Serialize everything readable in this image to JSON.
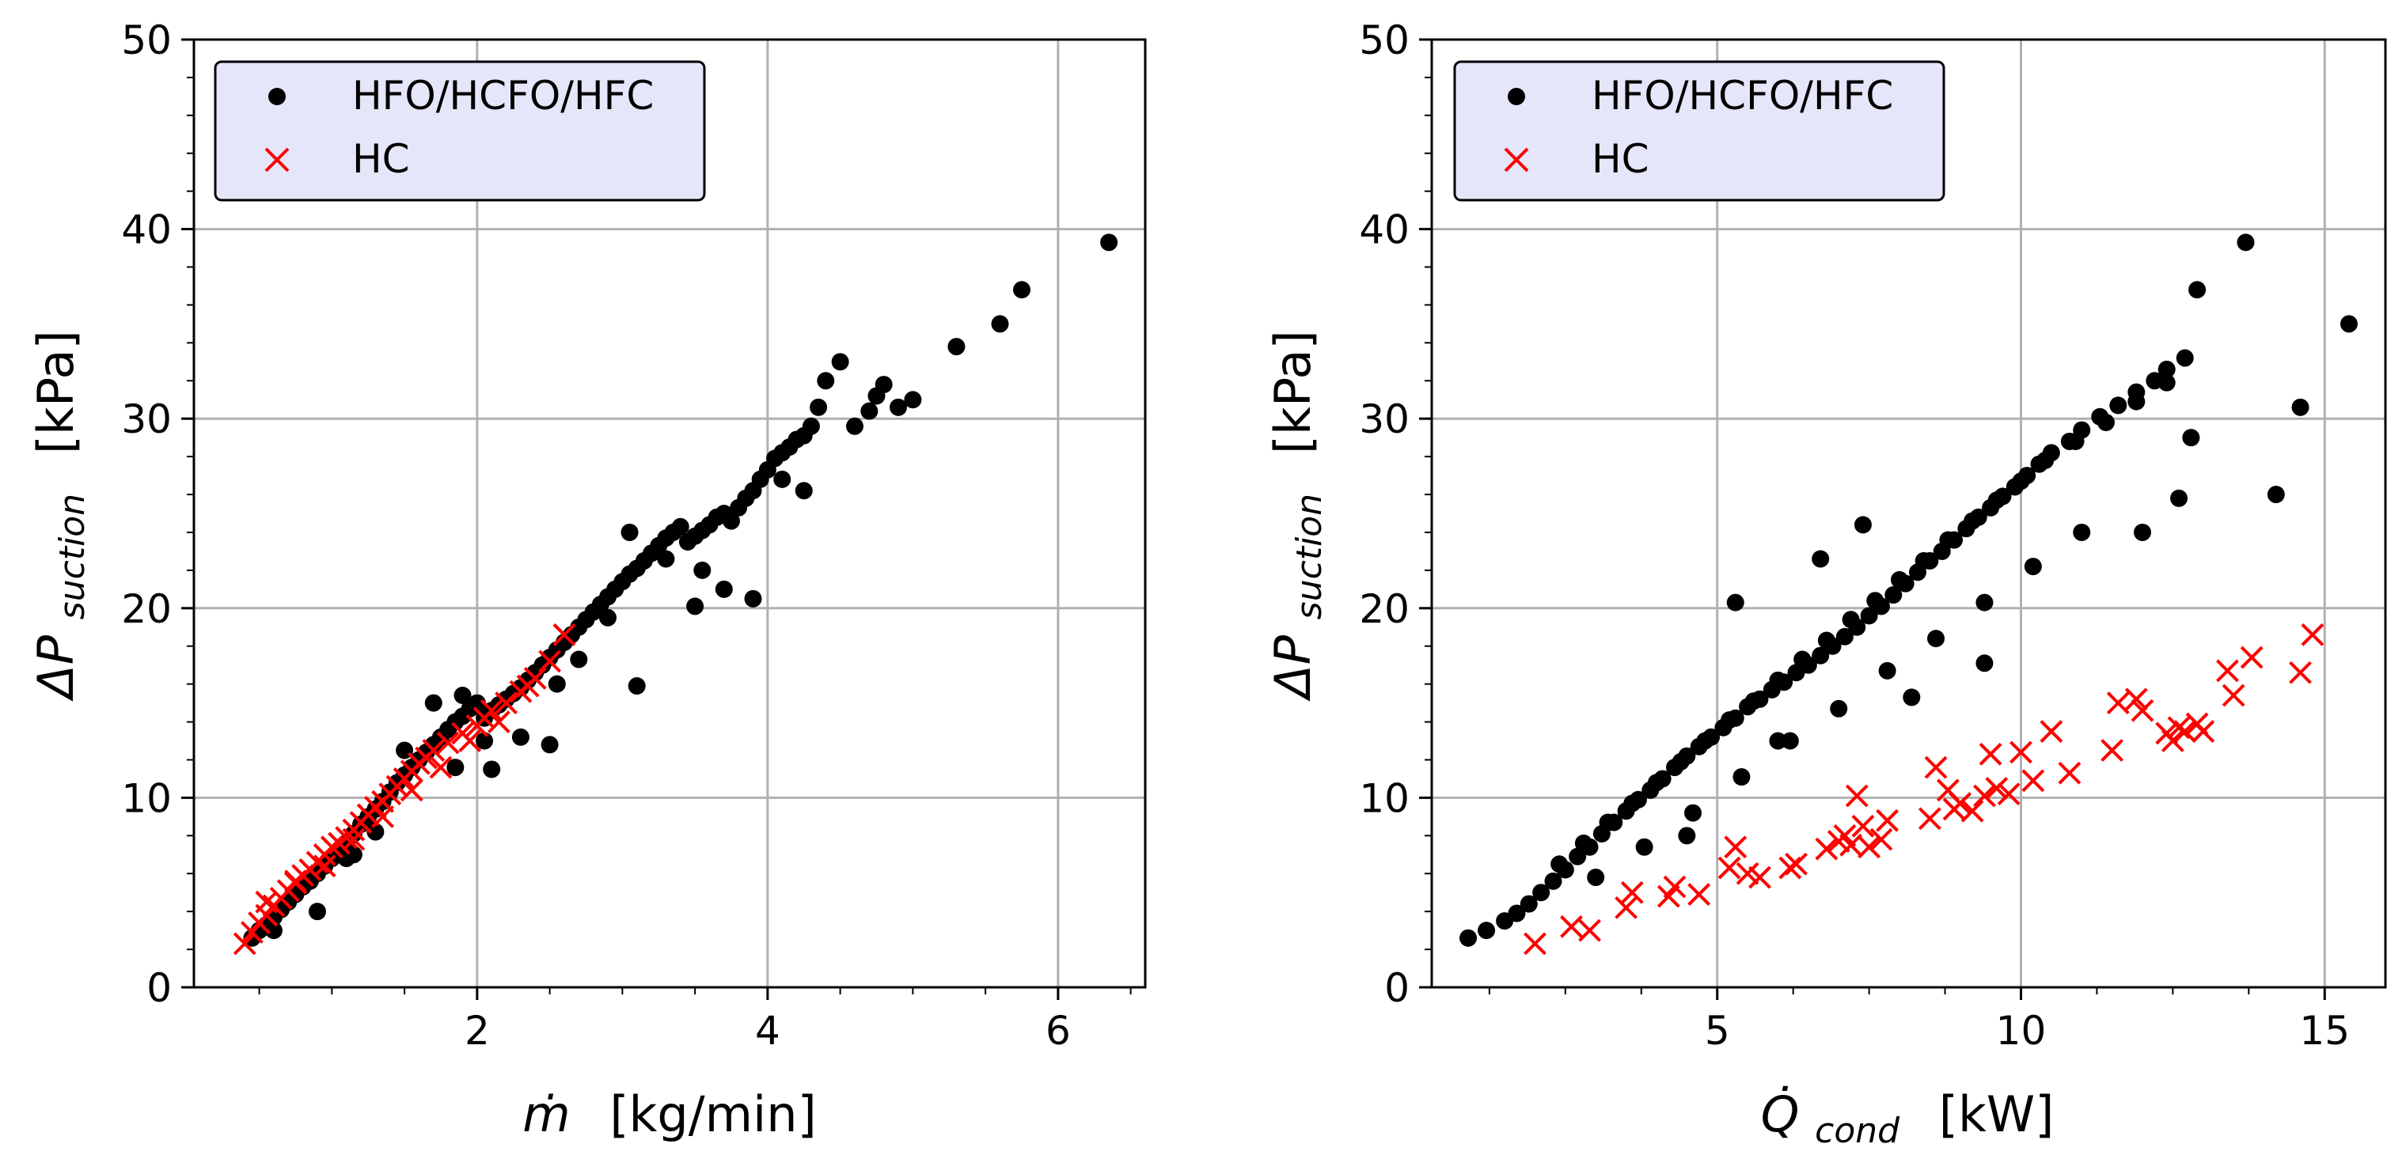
{
  "legend": {
    "series1": "HFO/HCFO/HFC",
    "series2": "HC"
  },
  "colors": {
    "series1": "#000000",
    "series2": "#ff0000",
    "legend_bg": "#e6e6fa",
    "grid": "#b0b0b0"
  },
  "chart_data": [
    {
      "type": "scatter",
      "xlabel_main": "ṁ",
      "xlabel_unit": "[kg/min]",
      "ylabel_main": "ΔP",
      "ylabel_sub": "suction",
      "ylabel_unit": "[kPa]",
      "xlim": [
        0.05,
        6.6
      ],
      "ylim": [
        0,
        50
      ],
      "xticks": [
        2,
        4,
        6
      ],
      "yticks": [
        0,
        10,
        20,
        30,
        40,
        50
      ],
      "grid": true,
      "legend_position": "top-left",
      "series": [
        {
          "name": "HFO/HCFO/HFC",
          "marker": "circle",
          "x": [
            0.45,
            0.5,
            0.55,
            0.6,
            0.65,
            0.7,
            0.75,
            0.8,
            0.85,
            0.9,
            0.95,
            1.0,
            1.05,
            1.1,
            1.15,
            1.2,
            1.25,
            1.3,
            1.35,
            1.4,
            1.45,
            1.5,
            1.55,
            1.6,
            1.65,
            1.7,
            1.75,
            1.8,
            1.85,
            1.9,
            1.95,
            2.0,
            2.05,
            2.1,
            2.15,
            2.2,
            2.25,
            2.3,
            2.35,
            2.4,
            2.45,
            2.5,
            2.55,
            2.6,
            2.65,
            2.7,
            2.75,
            2.8,
            2.85,
            2.9,
            2.95,
            3.0,
            3.05,
            3.1,
            3.15,
            3.2,
            3.25,
            3.3,
            3.35,
            3.4,
            3.45,
            3.5,
            3.55,
            3.6,
            3.65,
            3.7,
            3.75,
            3.8,
            3.85,
            3.9,
            3.95,
            4.0,
            4.05,
            4.1,
            4.15,
            4.2,
            4.25,
            4.3,
            4.35,
            4.4,
            4.5,
            4.6,
            4.7,
            4.75,
            4.8,
            4.9,
            5.0,
            5.3,
            5.6,
            5.75,
            6.35,
            0.6,
            0.9,
            1.1,
            1.3,
            1.5,
            1.7,
            1.9,
            2.1,
            2.3,
            2.5,
            2.7,
            2.9,
            3.1,
            3.3,
            3.5,
            3.7,
            3.9,
            4.1,
            1.15,
            1.85,
            2.05,
            2.55,
            3.05,
            3.55,
            4.25
          ],
          "y": [
            2.6,
            3.0,
            3.3,
            3.7,
            4.1,
            4.5,
            4.9,
            5.3,
            5.6,
            6.0,
            6.4,
            6.8,
            7.2,
            7.6,
            8.1,
            8.6,
            9.0,
            9.4,
            9.8,
            10.3,
            10.8,
            11.2,
            11.6,
            12.0,
            12.4,
            12.8,
            13.2,
            13.6,
            14.0,
            14.3,
            14.7,
            15.0,
            14.2,
            14.6,
            14.9,
            15.2,
            15.5,
            15.8,
            16.2,
            16.6,
            17.0,
            17.4,
            17.8,
            18.2,
            18.6,
            19.0,
            19.4,
            19.8,
            20.2,
            20.6,
            21.0,
            21.4,
            21.8,
            22.1,
            22.5,
            22.9,
            23.3,
            23.7,
            24.0,
            24.3,
            23.5,
            23.8,
            24.1,
            24.4,
            24.8,
            25.0,
            24.6,
            25.3,
            25.8,
            26.2,
            26.8,
            27.3,
            27.9,
            28.2,
            28.5,
            28.9,
            29.1,
            29.6,
            30.6,
            32.0,
            33.0,
            29.6,
            30.4,
            31.2,
            31.8,
            30.6,
            31.0,
            33.8,
            35.0,
            36.8,
            39.3,
            3.0,
            4.0,
            6.8,
            8.2,
            12.5,
            15.0,
            15.4,
            11.5,
            13.2,
            12.8,
            17.3,
            19.5,
            15.9,
            22.6,
            20.1,
            21.0,
            20.5,
            26.8,
            7.0,
            11.6,
            13.0,
            16.0,
            24.0,
            22.0,
            26.2
          ]
        },
        {
          "name": "HC",
          "marker": "x",
          "x": [
            0.4,
            0.45,
            0.5,
            0.55,
            0.6,
            0.65,
            0.7,
            0.75,
            0.8,
            0.85,
            0.9,
            0.95,
            1.0,
            1.05,
            1.1,
            1.15,
            1.2,
            1.25,
            1.3,
            1.35,
            1.4,
            1.45,
            1.5,
            1.55,
            1.6,
            1.65,
            1.7,
            1.8,
            1.9,
            2.0,
            2.05,
            2.1,
            2.2,
            2.3,
            2.4,
            2.5,
            2.6,
            0.55,
            0.75,
            0.95,
            1.15,
            1.35,
            1.55,
            1.75,
            1.95,
            2.15,
            2.35
          ],
          "y": [
            2.3,
            2.9,
            3.4,
            3.8,
            4.3,
            4.7,
            5.1,
            5.5,
            5.9,
            6.2,
            6.6,
            7.0,
            7.4,
            7.6,
            7.9,
            8.3,
            8.7,
            9.1,
            9.5,
            9.8,
            10.2,
            10.6,
            11.0,
            11.4,
            11.8,
            12.1,
            12.5,
            12.9,
            13.4,
            13.8,
            14.2,
            14.6,
            15.0,
            15.6,
            16.3,
            17.2,
            18.6,
            4.5,
            5.6,
            6.4,
            7.8,
            9.0,
            10.4,
            11.6,
            13.0,
            14.0,
            15.9
          ]
        }
      ]
    },
    {
      "type": "scatter",
      "xlabel_main": "Q̇",
      "xlabel_sub": "cond",
      "xlabel_unit": "[kW]",
      "ylabel_main": "ΔP",
      "ylabel_sub": "suction",
      "ylabel_unit": "[kPa]",
      "xlim": [
        0.3,
        16.0
      ],
      "ylim": [
        0,
        50
      ],
      "xticks": [
        5,
        10,
        15
      ],
      "yticks": [
        0,
        10,
        20,
        30,
        40,
        50
      ],
      "grid": true,
      "legend_position": "top-left",
      "series": [
        {
          "name": "HFO/HCFO/HFC",
          "marker": "circle",
          "x": [
            0.9,
            1.2,
            1.5,
            1.7,
            1.9,
            2.1,
            2.3,
            2.5,
            2.7,
            2.9,
            3.1,
            3.3,
            3.5,
            3.7,
            3.9,
            4.1,
            4.3,
            4.5,
            4.7,
            4.9,
            5.1,
            5.3,
            5.5,
            5.7,
            5.9,
            6.1,
            6.3,
            6.5,
            6.7,
            6.9,
            7.1,
            7.3,
            7.5,
            7.7,
            7.9,
            8.1,
            8.3,
            8.5,
            8.7,
            8.9,
            9.1,
            9.3,
            9.5,
            9.7,
            9.9,
            10.1,
            10.3,
            10.5,
            10.8,
            11.0,
            11.3,
            11.6,
            11.9,
            12.2,
            12.4,
            12.7,
            12.9,
            13.7,
            14.2,
            14.6,
            15.4,
            2.4,
            2.8,
            3.2,
            3.6,
            4.0,
            4.4,
            4.8,
            5.2,
            5.6,
            6.0,
            6.4,
            6.8,
            7.2,
            7.6,
            8.0,
            8.4,
            8.8,
            9.2,
            9.6,
            10.0,
            10.4,
            10.9,
            11.4,
            11.9,
            12.4,
            12.8,
            3.0,
            3.8,
            4.6,
            5.4,
            6.2,
            7.0,
            7.8,
            8.6,
            9.4,
            10.2,
            11.0,
            12.0,
            12.6,
            4.5,
            5.3,
            6.7,
            8.2,
            9.4,
            7.4,
            6.0
          ],
          "y": [
            2.6,
            3.0,
            3.5,
            3.9,
            4.4,
            5.0,
            5.6,
            6.2,
            6.9,
            7.4,
            8.1,
            8.7,
            9.3,
            9.9,
            10.4,
            11.0,
            11.6,
            12.2,
            12.7,
            13.2,
            13.7,
            14.2,
            14.8,
            15.2,
            15.7,
            16.1,
            16.6,
            17.0,
            17.5,
            18.0,
            18.5,
            19.0,
            19.6,
            20.1,
            20.7,
            21.3,
            21.9,
            22.5,
            23.0,
            23.6,
            24.2,
            24.8,
            25.3,
            25.9,
            26.4,
            27.0,
            27.6,
            28.2,
            28.8,
            29.4,
            30.1,
            30.7,
            31.4,
            32.0,
            32.6,
            33.2,
            36.8,
            39.3,
            26.0,
            30.6,
            35.0,
            6.5,
            7.6,
            8.7,
            9.7,
            10.8,
            11.9,
            13.0,
            14.1,
            15.1,
            16.2,
            17.3,
            18.3,
            19.4,
            20.4,
            21.5,
            22.5,
            23.6,
            24.6,
            25.7,
            26.7,
            27.8,
            28.8,
            29.8,
            30.9,
            31.9,
            29.0,
            5.8,
            7.4,
            9.2,
            11.1,
            13.0,
            14.7,
            16.7,
            18.4,
            20.3,
            22.2,
            24.0,
            24.0,
            25.8,
            8.0,
            20.3,
            22.6,
            15.3,
            17.1,
            24.4,
            13.0
          ]
        },
        {
          "name": "HC",
          "marker": "x",
          "x": [
            2.0,
            2.6,
            2.9,
            3.5,
            3.6,
            4.2,
            4.3,
            4.7,
            5.2,
            5.3,
            5.5,
            5.7,
            6.2,
            6.3,
            6.8,
            7.0,
            7.1,
            7.2,
            7.3,
            7.4,
            7.5,
            7.7,
            7.8,
            8.5,
            8.6,
            8.8,
            8.9,
            9.0,
            9.2,
            9.4,
            9.5,
            9.6,
            9.8,
            10.0,
            10.2,
            10.5,
            10.8,
            11.5,
            11.6,
            11.9,
            12.0,
            12.4,
            12.5,
            12.6,
            12.7,
            12.9,
            13.0,
            13.4,
            13.5,
            13.8,
            14.6,
            14.8
          ],
          "y": [
            2.3,
            3.2,
            3.0,
            4.2,
            5.0,
            4.8,
            5.3,
            4.9,
            6.3,
            7.4,
            6.0,
            5.8,
            6.3,
            6.5,
            7.3,
            7.7,
            8.0,
            7.5,
            10.1,
            8.5,
            7.4,
            7.8,
            8.8,
            8.9,
            11.6,
            10.4,
            9.4,
            9.7,
            9.3,
            10.1,
            12.3,
            10.5,
            10.2,
            12.4,
            10.9,
            13.5,
            11.3,
            12.5,
            15.0,
            15.2,
            14.6,
            13.4,
            13.0,
            13.7,
            13.5,
            13.9,
            13.5,
            16.7,
            15.4,
            17.4,
            16.6,
            18.6
          ]
        }
      ]
    }
  ]
}
